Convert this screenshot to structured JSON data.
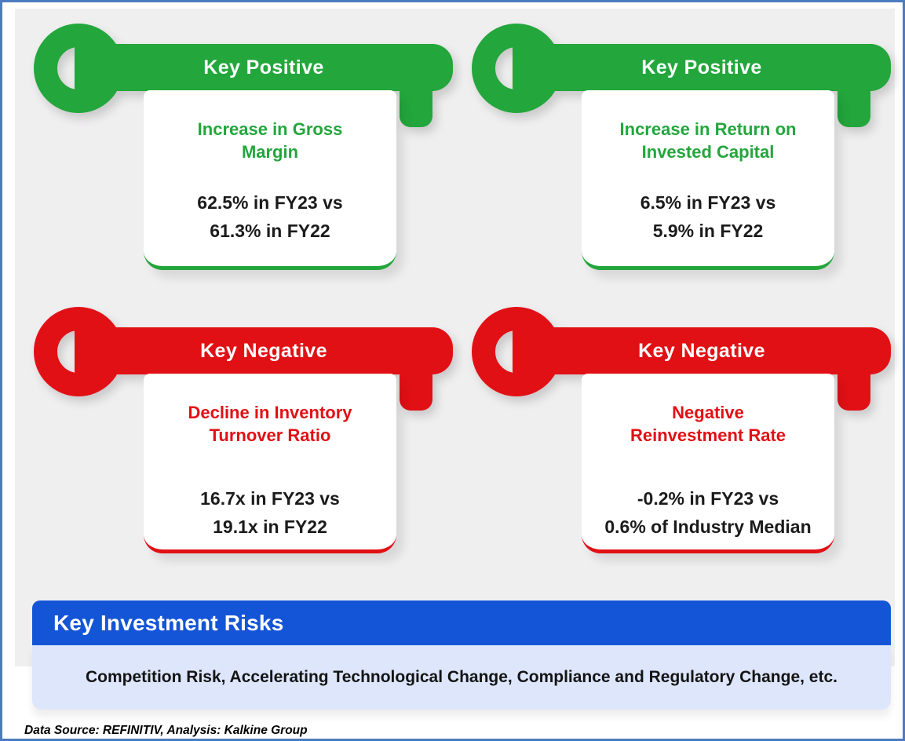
{
  "colors": {
    "positive_green": "#23A63C",
    "negative_red": "#E11015",
    "banner_blue": "#1355D6",
    "risk_box_light_blue": "#DDE6FB",
    "frame_border_blue": "#4D7CBE",
    "panel_gray": "#F0EFF0"
  },
  "keys": [
    {
      "icon": "key-icon",
      "label": "Key Positive",
      "title": "Increase in Gross\nMargin",
      "values": "62.5% in FY23 vs\n61.3% in FY22"
    },
    {
      "icon": "key-icon",
      "label": "Key Positive",
      "title": "Increase in Return on\nInvested Capital",
      "values": "6.5% in FY23 vs\n5.9% in FY22"
    },
    {
      "icon": "key-icon",
      "label": "Key Negative",
      "title": "Decline in Inventory\nTurnover Ratio",
      "values": "16.7x in FY23 vs\n19.1x in FY22"
    },
    {
      "icon": "key-icon",
      "label": "Key Negative",
      "title": "Negative\nReinvestment Rate",
      "values": "-0.2% in FY23 vs\n0.6% of Industry Median"
    }
  ],
  "risks": {
    "header": "Key Investment Risks",
    "body": "Competition Risk, Accelerating Technological Change, Compliance and Regulatory Change, etc."
  },
  "footer": {
    "text": "Data Source: REFINITIV, Analysis: Kalkine Group"
  }
}
